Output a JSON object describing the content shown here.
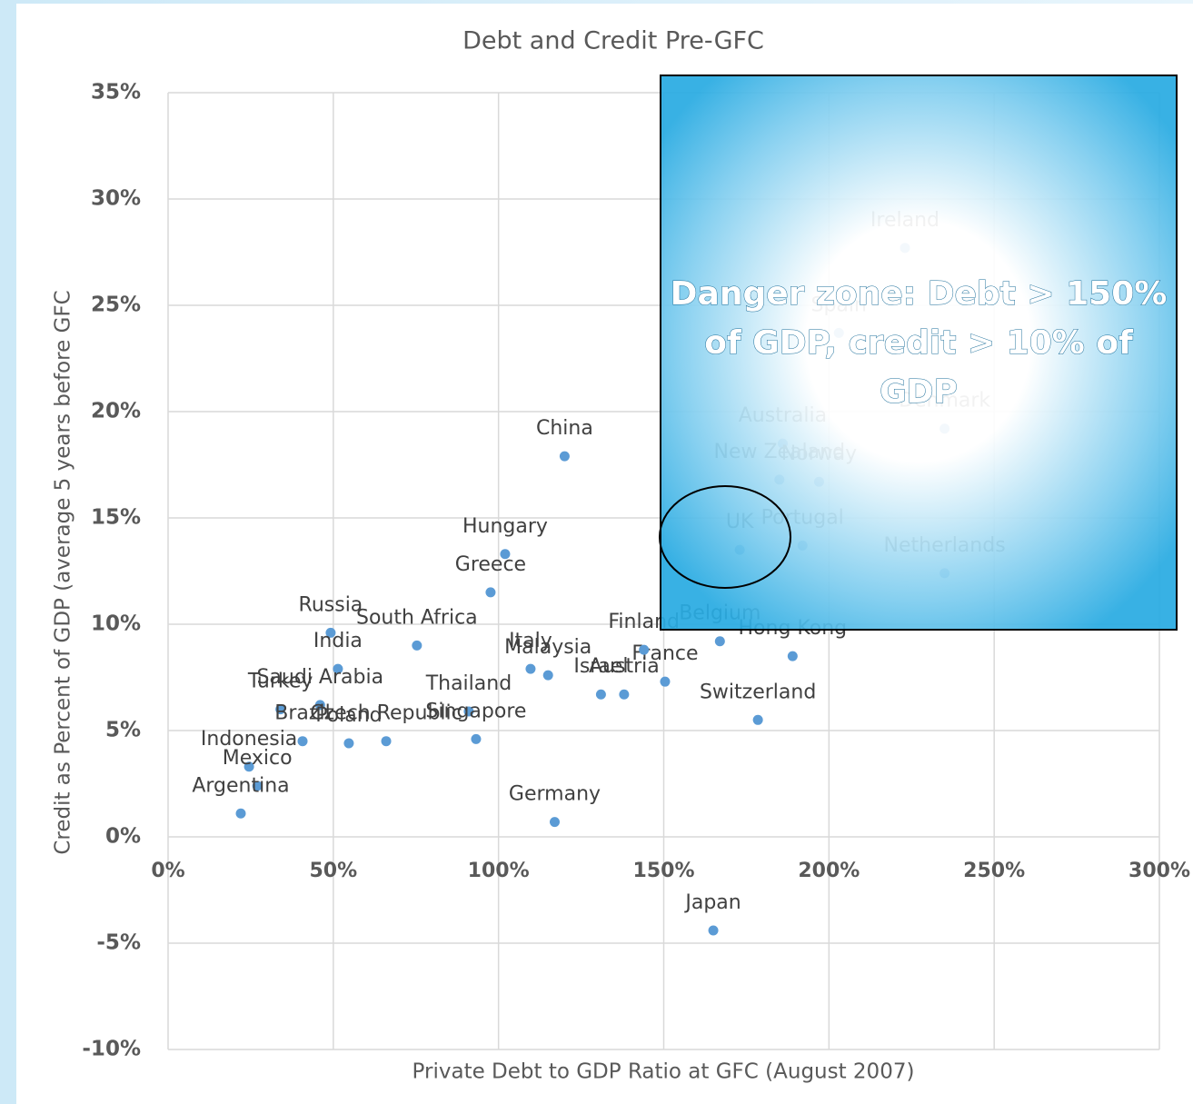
{
  "chart_data": {
    "type": "scatter",
    "title": "Debt and Credit Pre-GFC",
    "x_label": "Private Debt to GDP Ratio at GFC (August 2007)",
    "y_label": "Credit as Percent of GDP (average 5 years before GFC",
    "color": "#5b9bd5",
    "grid": true,
    "xlim": [
      0,
      300
    ],
    "ylim": [
      -10,
      35
    ],
    "xticks": [
      {
        "value": 0,
        "label": "0%"
      },
      {
        "value": 50,
        "label": "50%"
      },
      {
        "value": 100,
        "label": "100%"
      },
      {
        "value": 150,
        "label": "150%"
      },
      {
        "value": 200,
        "label": "200%"
      },
      {
        "value": 250,
        "label": "250%"
      },
      {
        "value": 300,
        "label": "300%"
      }
    ],
    "yticks": [
      {
        "value": -10,
        "label": "-10%"
      },
      {
        "value": -5,
        "label": "-5%"
      },
      {
        "value": 0,
        "label": "0%"
      },
      {
        "value": 5,
        "label": "5%"
      },
      {
        "value": 10,
        "label": "10%"
      },
      {
        "value": 15,
        "label": "15%"
      },
      {
        "value": 20,
        "label": "20%"
      },
      {
        "value": 25,
        "label": "25%"
      },
      {
        "value": 30,
        "label": "30%"
      },
      {
        "value": 35,
        "label": "35%"
      }
    ],
    "labels": [
      "China",
      "Hungary",
      "Greece",
      "Russia",
      "South Africa",
      "India",
      "Italy",
      "Malaysia",
      "Saudi Arabia",
      "Turkey",
      "Thailand",
      "Brazil",
      "Poland",
      "Czech Republic",
      "Singapore",
      "Indonesia",
      "Mexico",
      "Argentina",
      "Germany",
      "Israel",
      "Austria",
      "France",
      "Finland",
      "Belgium",
      "Hong Kong",
      "Switzerland",
      "Japan",
      "Ireland",
      "Spain",
      "Denmark",
      "Australia",
      "New Zealand",
      "Norway",
      "Portugal",
      "UK",
      "Netherlands"
    ],
    "x": [
      120,
      102,
      97.6,
      49.2,
      75.3,
      51.4,
      109.7,
      115,
      46,
      34,
      91,
      40.7,
      54.7,
      66,
      93.2,
      24.5,
      27,
      22,
      117,
      131,
      138,
      150.4,
      144,
      167,
      189,
      178.5,
      165,
      223,
      203,
      235,
      186,
      185,
      197,
      192,
      173,
      235
    ],
    "y": [
      17.9,
      13.3,
      11.5,
      9.6,
      9,
      7.9,
      7.9,
      7.6,
      6.2,
      6,
      5.9,
      4.5,
      4.4,
      4.5,
      4.6,
      3.3,
      2.4,
      1.1,
      0.7,
      6.7,
      6.7,
      7.3,
      8.8,
      9.2,
      8.5,
      5.5,
      -4.4,
      27.7,
      23.7,
      19.2,
      18.5,
      16.8,
      16.7,
      13.7,
      13.5,
      12.4
    ],
    "annotation": "Danger zone: Debt > 150% of GDP, credit > 10% of GDP"
  }
}
